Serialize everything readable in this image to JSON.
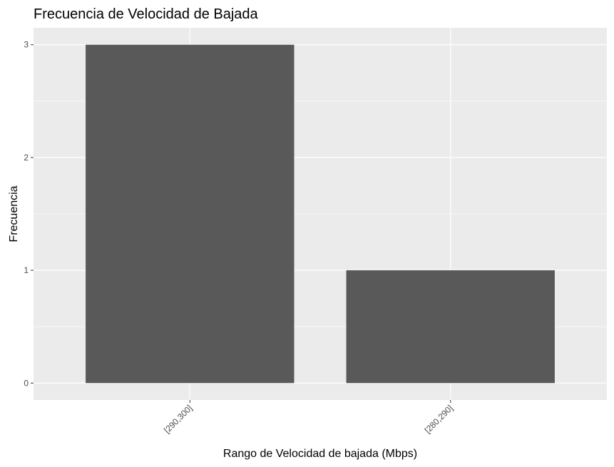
{
  "chart_data": {
    "type": "bar",
    "title": "Frecuencia de Velocidad de Bajada",
    "xlabel": "Rango de Velocidad de bajada (Mbps)",
    "ylabel": "Frecuencia",
    "categories": [
      "[290,300]",
      "[280,290]"
    ],
    "values": [
      3,
      1
    ],
    "ylim": [
      -0.15,
      3.15
    ],
    "yticks": [
      0,
      1,
      2,
      3
    ],
    "grid": true,
    "legend": "none",
    "colors": {
      "panel_background": "#ebebeb",
      "grid_major": "#ffffff",
      "bar_fill": "#595959",
      "tick_text": "#4d4d4d",
      "text": "#000000"
    }
  }
}
